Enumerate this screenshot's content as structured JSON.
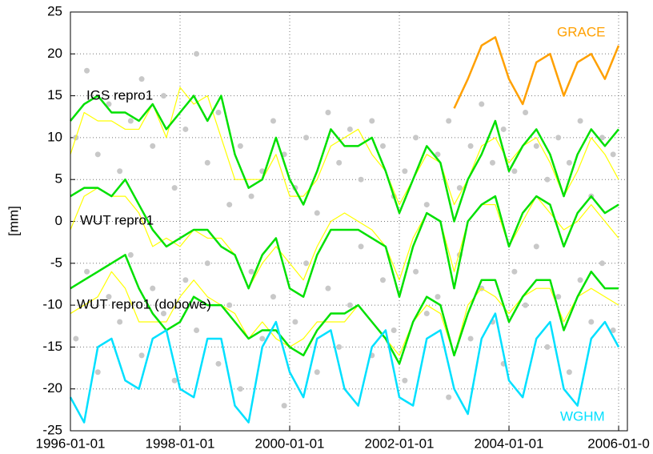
{
  "chart_data": {
    "type": "line",
    "ylabel": "[mm]",
    "xlim": [
      1996,
      2006.16
    ],
    "ylim": [
      -25,
      25
    ],
    "xticks": [
      {
        "value": 1996,
        "label": "1996-01-01"
      },
      {
        "value": 1998,
        "label": "1998-01-01"
      },
      {
        "value": 2000,
        "label": "2000-01-01"
      },
      {
        "value": 2002,
        "label": "2002-01-01"
      },
      {
        "value": 2004,
        "label": "2004-01-01"
      },
      {
        "value": 2006,
        "label": "2006-01-0"
      }
    ],
    "yticks": [
      -25,
      -20,
      -15,
      -10,
      -5,
      0,
      5,
      10,
      15,
      20,
      25
    ],
    "grid": true,
    "scatter": {
      "color": "#c8c8c8",
      "x": [
        1996.1,
        1996.3,
        1996.5,
        1996.7,
        1996.9,
        1997.1,
        1997.3,
        1997.5,
        1997.7,
        1997.9,
        1998.1,
        1998.3,
        1998.5,
        1998.7,
        1998.9,
        1999.1,
        1999.3,
        1999.5,
        1999.7,
        1999.9,
        2000.1,
        2000.3,
        2000.5,
        2000.7,
        2000.9,
        2001.1,
        2001.3,
        2001.5,
        2001.7,
        2001.9,
        2002.1,
        2002.3,
        2002.5,
        2002.7,
        2002.9,
        2003.1,
        2003.3,
        2003.5,
        2003.7,
        2003.9,
        2004.1,
        2004.3,
        2004.5,
        2004.7,
        2004.9,
        2005.1,
        2005.3,
        2005.5,
        2005.7,
        2005.9,
        1996.1,
        1996.3,
        1996.5,
        1996.7,
        1996.9,
        1997.1,
        1997.3,
        1997.5,
        1997.7,
        1997.9,
        1998.1,
        1998.3,
        1998.5,
        1998.7,
        1998.9,
        1999.1,
        1999.3,
        1999.5,
        1999.7,
        1999.9,
        2000.1,
        2000.3,
        2000.5,
        2000.7,
        2000.9,
        2001.1,
        2001.3,
        2001.5,
        2001.7,
        2001.9,
        2002.1,
        2002.3,
        2002.5,
        2002.7,
        2002.9,
        2003.1,
        2003.3,
        2003.5,
        2003.7,
        2003.9,
        2004.1,
        2004.3,
        2004.5,
        2004.7,
        2004.9,
        2005.1,
        2005.3,
        2005.5,
        2005.7,
        2005.9
      ],
      "y": [
        10,
        18,
        8,
        14,
        6,
        12,
        17,
        9,
        15,
        4,
        11,
        20,
        7,
        13,
        2,
        9,
        3,
        6,
        12,
        8,
        4,
        10,
        1,
        13,
        7,
        11,
        5,
        12,
        9,
        3,
        6,
        10,
        2,
        8,
        12,
        4,
        9,
        14,
        7,
        11,
        6,
        13,
        9,
        5,
        10,
        7,
        12,
        3,
        10,
        8,
        -14,
        -6,
        -18,
        -9,
        -12,
        -4,
        -16,
        -8,
        -11,
        -19,
        -7,
        -13,
        -5,
        -17,
        -10,
        -20,
        -6,
        -14,
        -9,
        -22,
        -12,
        -5,
        -18,
        -8,
        -15,
        -10,
        -3,
        -16,
        -7,
        -13,
        -19,
        -6,
        -11,
        -9,
        -21,
        -4,
        -14,
        -8,
        -12,
        -17,
        -6,
        -10,
        -3,
        -15,
        -9,
        -18,
        -7,
        -12,
        -5,
        -13
      ]
    },
    "x": [
      1996,
      1996.25,
      1996.5,
      1996.75,
      1997,
      1997.25,
      1997.5,
      1997.75,
      1998,
      1998.25,
      1998.5,
      1998.75,
      1999,
      1999.25,
      1999.5,
      1999.75,
      2000,
      2000.25,
      2000.5,
      2000.75,
      2001,
      2001.25,
      2001.5,
      2001.75,
      2002,
      2002.25,
      2002.5,
      2002.75,
      2003,
      2003.25,
      2003.5,
      2003.75,
      2004,
      2004.25,
      2004.5,
      2004.75,
      2005,
      2005.25,
      2005.5,
      2005.75,
      2006
    ],
    "series": [
      {
        "color": "#ffff00",
        "values": [
          8,
          13,
          12,
          12,
          11,
          11,
          14,
          10,
          16,
          14,
          15,
          10,
          5,
          5,
          5,
          8,
          3,
          3,
          5,
          9,
          10,
          11,
          8,
          6,
          2,
          5,
          8,
          7,
          2,
          5,
          9,
          10,
          7,
          9,
          10,
          7,
          3,
          6,
          10,
          8,
          5
        ]
      },
      {
        "color": "#ffff00",
        "values": [
          -1,
          3,
          4,
          3,
          3,
          1,
          -3,
          -2,
          -3,
          -1,
          -2,
          -2,
          -4,
          -8,
          -5,
          -3,
          -5,
          -7,
          -3,
          0,
          1,
          0,
          -1,
          -3,
          -7,
          -2,
          1,
          0,
          -6,
          0,
          2,
          2,
          -3,
          0,
          3,
          1,
          -1,
          0,
          2,
          0,
          -2
        ]
      },
      {
        "color": "#ffff00",
        "values": [
          -11,
          -10,
          -9,
          -6,
          -8,
          -12,
          -12,
          -12,
          -9,
          -7,
          -9,
          -10,
          -11,
          -14,
          -12,
          -14,
          -15,
          -14,
          -12,
          -12,
          -12,
          -10,
          -12,
          -14,
          -16,
          -12,
          -10,
          -11,
          -16,
          -10,
          -8,
          -9,
          -11,
          -9,
          -8,
          -8,
          -12,
          -9,
          -8,
          -9,
          -10
        ]
      },
      {
        "name": "IGS repro1",
        "color": "#00e000",
        "values": [
          12,
          14,
          15,
          13,
          13,
          12,
          14,
          11,
          13,
          15,
          12,
          15,
          8,
          4,
          5,
          10,
          5,
          2,
          6,
          11,
          9,
          9,
          10,
          6,
          1,
          5,
          9,
          7,
          0,
          5,
          8,
          12,
          6,
          9,
          11,
          8,
          3,
          8,
          11,
          9,
          11
        ]
      },
      {
        "name": "WUT repro1",
        "color": "#00e000",
        "values": [
          3,
          4,
          4,
          3,
          5,
          2,
          -1,
          -3,
          -2,
          -1,
          -1,
          -3,
          -4,
          -8,
          -4,
          -2,
          -8,
          -9,
          -4,
          -1,
          -1,
          -1,
          -2,
          -3,
          -9,
          -3,
          1,
          0,
          -8,
          0,
          2,
          3,
          -3,
          1,
          3,
          2,
          -3,
          1,
          3,
          1,
          2
        ]
      },
      {
        "name": "WUT repro1 (dobowe)",
        "color": "#00e000",
        "values": [
          -8,
          -7,
          -6,
          -5,
          -4,
          -8,
          -11,
          -13,
          -12,
          -9,
          -10,
          -10,
          -12,
          -14,
          -13,
          -13,
          -15,
          -16,
          -13,
          -11,
          -11,
          -10,
          -12,
          -14,
          -17,
          -12,
          -9,
          -10,
          -16,
          -11,
          -7,
          -7,
          -12,
          -9,
          -7,
          -7,
          -13,
          -9,
          -6,
          -8,
          -8
        ]
      },
      {
        "name": "GRACE",
        "color": "#ffa000",
        "values": [
          null,
          null,
          null,
          null,
          null,
          null,
          null,
          null,
          null,
          null,
          null,
          null,
          null,
          null,
          null,
          null,
          null,
          null,
          null,
          null,
          null,
          null,
          null,
          null,
          null,
          null,
          null,
          null,
          13.5,
          17,
          21,
          22,
          17,
          14,
          19,
          20,
          15,
          19,
          20,
          17,
          21
        ]
      },
      {
        "name": "WGHM",
        "color": "#00e0ff",
        "values": [
          -21,
          -24,
          -15,
          -14,
          -19,
          -20,
          -14,
          -13,
          -20,
          -21,
          -14,
          -14,
          -22,
          -24,
          -15,
          -12,
          -18,
          -21,
          -14,
          -13,
          -20,
          -22,
          -15,
          -13,
          -21,
          -22,
          -14,
          -13,
          -20,
          -23,
          -14,
          -11,
          -19,
          -21,
          -14,
          -12,
          -20,
          -22,
          -14,
          -12,
          -15
        ]
      }
    ]
  }
}
